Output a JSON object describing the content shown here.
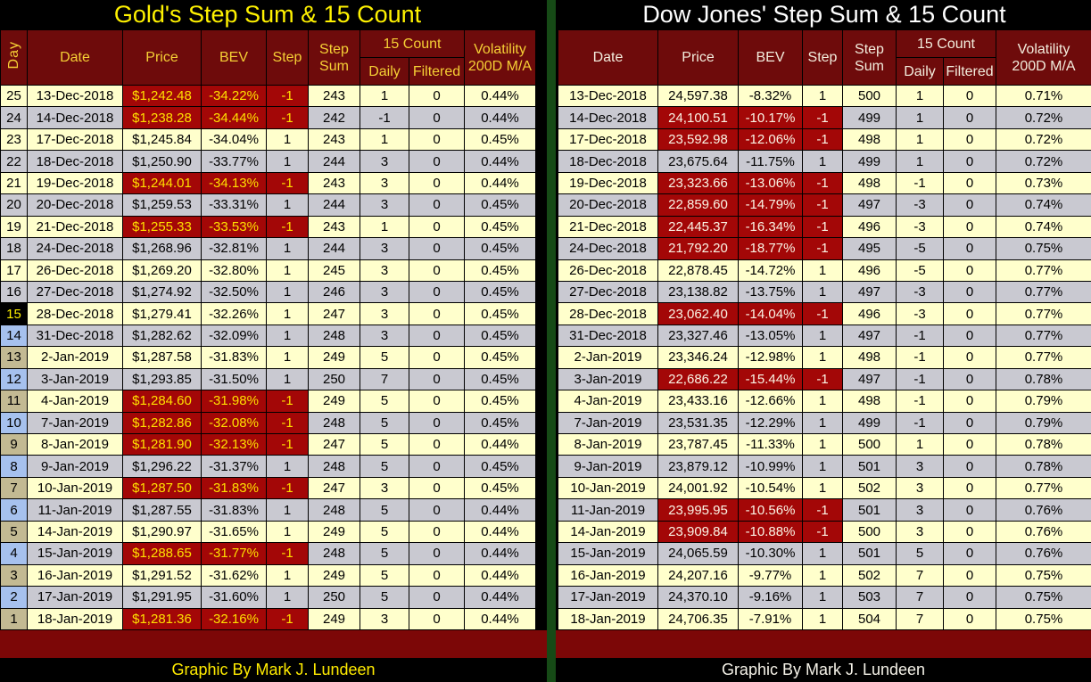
{
  "colors": {
    "headerbg": "#6E0B0B",
    "hlbg": "#A30707",
    "rowa": "#FFFFCC",
    "rowb": "#C9C9D1",
    "dayblue": "#A6C1EE",
    "daytan": "#C3BA93",
    "dayhotbg": "#000000",
    "dayhottext": "#FFF200",
    "footerbar": "#7C0707",
    "divider": "#164A16",
    "goldtitle": "#FFF200",
    "goldheader": "#F5CF35",
    "goldhl": "#FFE000",
    "goldfooter": "#FFEB00",
    "dowtitle": "#FFFFFF",
    "dowheader": "#F3EDDD",
    "dowhl": "#FBF5E6",
    "dowfooter": "#F5F2E8"
  },
  "chart_data": [
    {
      "type": "table",
      "title": "Gold's Step Sum & 15 Count",
      "footer": "Graphic By Mark J. Lundeen",
      "has_day_column": true,
      "header_labels": {
        "day": "Day",
        "date": "Date",
        "price": "Price",
        "bev": "BEV",
        "step": "Step",
        "step_sum_top": "Step",
        "step_sum_bottom": "Sum",
        "count15": "15 Count",
        "daily": "Daily",
        "filtered": "Filtered",
        "volatility_top": "Volatility",
        "volatility_bottom": "200D M/A"
      },
      "fields": [
        "day",
        "date",
        "price",
        "bev",
        "step",
        "step_sum",
        "daily",
        "filtered",
        "volatility"
      ],
      "rows": [
        [
          25,
          "13-Dec-2018",
          "$1,242.48",
          "-34.22%",
          -1,
          243,
          1,
          0,
          "0.44%"
        ],
        [
          24,
          "14-Dec-2018",
          "$1,238.28",
          "-34.44%",
          -1,
          242,
          -1,
          0,
          "0.44%"
        ],
        [
          23,
          "17-Dec-2018",
          "$1,245.84",
          "-34.04%",
          1,
          243,
          1,
          0,
          "0.45%"
        ],
        [
          22,
          "18-Dec-2018",
          "$1,250.90",
          "-33.77%",
          1,
          244,
          3,
          0,
          "0.44%"
        ],
        [
          21,
          "19-Dec-2018",
          "$1,244.01",
          "-34.13%",
          -1,
          243,
          3,
          0,
          "0.44%"
        ],
        [
          20,
          "20-Dec-2018",
          "$1,259.53",
          "-33.31%",
          1,
          244,
          3,
          0,
          "0.45%"
        ],
        [
          19,
          "21-Dec-2018",
          "$1,255.33",
          "-33.53%",
          -1,
          243,
          1,
          0,
          "0.45%"
        ],
        [
          18,
          "24-Dec-2018",
          "$1,268.96",
          "-32.81%",
          1,
          244,
          3,
          0,
          "0.45%"
        ],
        [
          17,
          "26-Dec-2018",
          "$1,269.20",
          "-32.80%",
          1,
          245,
          3,
          0,
          "0.45%"
        ],
        [
          16,
          "27-Dec-2018",
          "$1,274.92",
          "-32.50%",
          1,
          246,
          3,
          0,
          "0.45%"
        ],
        [
          15,
          "28-Dec-2018",
          "$1,279.41",
          "-32.26%",
          1,
          247,
          3,
          0,
          "0.45%"
        ],
        [
          14,
          "31-Dec-2018",
          "$1,282.62",
          "-32.09%",
          1,
          248,
          3,
          0,
          "0.45%"
        ],
        [
          13,
          "2-Jan-2019",
          "$1,287.58",
          "-31.83%",
          1,
          249,
          5,
          0,
          "0.45%"
        ],
        [
          12,
          "3-Jan-2019",
          "$1,293.85",
          "-31.50%",
          1,
          250,
          7,
          0,
          "0.45%"
        ],
        [
          11,
          "4-Jan-2019",
          "$1,284.60",
          "-31.98%",
          -1,
          249,
          5,
          0,
          "0.45%"
        ],
        [
          10,
          "7-Jan-2019",
          "$1,282.86",
          "-32.08%",
          -1,
          248,
          5,
          0,
          "0.45%"
        ],
        [
          9,
          "8-Jan-2019",
          "$1,281.90",
          "-32.13%",
          -1,
          247,
          5,
          0,
          "0.44%"
        ],
        [
          8,
          "9-Jan-2019",
          "$1,296.22",
          "-31.37%",
          1,
          248,
          5,
          0,
          "0.45%"
        ],
        [
          7,
          "10-Jan-2019",
          "$1,287.50",
          "-31.83%",
          -1,
          247,
          3,
          0,
          "0.45%"
        ],
        [
          6,
          "11-Jan-2019",
          "$1,287.55",
          "-31.83%",
          1,
          248,
          5,
          0,
          "0.44%"
        ],
        [
          5,
          "14-Jan-2019",
          "$1,290.97",
          "-31.65%",
          1,
          249,
          5,
          0,
          "0.44%"
        ],
        [
          4,
          "15-Jan-2019",
          "$1,288.65",
          "-31.77%",
          -1,
          248,
          5,
          0,
          "0.44%"
        ],
        [
          3,
          "16-Jan-2019",
          "$1,291.52",
          "-31.62%",
          1,
          249,
          5,
          0,
          "0.44%"
        ],
        [
          2,
          "17-Jan-2019",
          "$1,291.95",
          "-31.60%",
          1,
          250,
          5,
          0,
          "0.44%"
        ],
        [
          1,
          "18-Jan-2019",
          "$1,281.36",
          "-32.16%",
          -1,
          249,
          3,
          0,
          "0.44%"
        ]
      ]
    },
    {
      "type": "table",
      "title": "Dow Jones' Step Sum & 15 Count",
      "footer": "Graphic By Mark J. Lundeen",
      "has_day_column": false,
      "header_labels": {
        "date": "Date",
        "price": "Price",
        "bev": "BEV",
        "step": "Step",
        "step_sum_top": "Step",
        "step_sum_bottom": "Sum",
        "count15": "15 Count",
        "daily": "Daily",
        "filtered": "Filtered",
        "volatility_top": "Volatility",
        "volatility_bottom": "200D M/A"
      },
      "fields": [
        "date",
        "price",
        "bev",
        "step",
        "step_sum",
        "daily",
        "filtered",
        "volatility"
      ],
      "rows": [
        [
          "13-Dec-2018",
          "24,597.38",
          "-8.32%",
          1,
          500,
          1,
          0,
          "0.71%"
        ],
        [
          "14-Dec-2018",
          "24,100.51",
          "-10.17%",
          -1,
          499,
          1,
          0,
          "0.72%"
        ],
        [
          "17-Dec-2018",
          "23,592.98",
          "-12.06%",
          -1,
          498,
          1,
          0,
          "0.72%"
        ],
        [
          "18-Dec-2018",
          "23,675.64",
          "-11.75%",
          1,
          499,
          1,
          0,
          "0.72%"
        ],
        [
          "19-Dec-2018",
          "23,323.66",
          "-13.06%",
          -1,
          498,
          -1,
          0,
          "0.73%"
        ],
        [
          "20-Dec-2018",
          "22,859.60",
          "-14.79%",
          -1,
          497,
          -3,
          0,
          "0.74%"
        ],
        [
          "21-Dec-2018",
          "22,445.37",
          "-16.34%",
          -1,
          496,
          -3,
          0,
          "0.74%"
        ],
        [
          "24-Dec-2018",
          "21,792.20",
          "-18.77%",
          -1,
          495,
          -5,
          0,
          "0.75%"
        ],
        [
          "26-Dec-2018",
          "22,878.45",
          "-14.72%",
          1,
          496,
          -5,
          0,
          "0.77%"
        ],
        [
          "27-Dec-2018",
          "23,138.82",
          "-13.75%",
          1,
          497,
          -3,
          0,
          "0.77%"
        ],
        [
          "28-Dec-2018",
          "23,062.40",
          "-14.04%",
          -1,
          496,
          -3,
          0,
          "0.77%"
        ],
        [
          "31-Dec-2018",
          "23,327.46",
          "-13.05%",
          1,
          497,
          -1,
          0,
          "0.77%"
        ],
        [
          "2-Jan-2019",
          "23,346.24",
          "-12.98%",
          1,
          498,
          -1,
          0,
          "0.77%"
        ],
        [
          "3-Jan-2019",
          "22,686.22",
          "-15.44%",
          -1,
          497,
          -1,
          0,
          "0.78%"
        ],
        [
          "4-Jan-2019",
          "23,433.16",
          "-12.66%",
          1,
          498,
          -1,
          0,
          "0.79%"
        ],
        [
          "7-Jan-2019",
          "23,531.35",
          "-12.29%",
          1,
          499,
          -1,
          0,
          "0.79%"
        ],
        [
          "8-Jan-2019",
          "23,787.45",
          "-11.33%",
          1,
          500,
          1,
          0,
          "0.78%"
        ],
        [
          "9-Jan-2019",
          "23,879.12",
          "-10.99%",
          1,
          501,
          3,
          0,
          "0.78%"
        ],
        [
          "10-Jan-2019",
          "24,001.92",
          "-10.54%",
          1,
          502,
          3,
          0,
          "0.77%"
        ],
        [
          "11-Jan-2019",
          "23,995.95",
          "-10.56%",
          -1,
          501,
          3,
          0,
          "0.76%"
        ],
        [
          "14-Jan-2019",
          "23,909.84",
          "-10.88%",
          -1,
          500,
          3,
          0,
          "0.76%"
        ],
        [
          "15-Jan-2019",
          "24,065.59",
          "-10.30%",
          1,
          501,
          5,
          0,
          "0.76%"
        ],
        [
          "16-Jan-2019",
          "24,207.16",
          "-9.77%",
          1,
          502,
          7,
          0,
          "0.75%"
        ],
        [
          "17-Jan-2019",
          "24,370.10",
          "-9.16%",
          1,
          503,
          7,
          0,
          "0.75%"
        ],
        [
          "18-Jan-2019",
          "24,706.35",
          "-7.91%",
          1,
          504,
          7,
          0,
          "0.75%"
        ]
      ]
    }
  ]
}
